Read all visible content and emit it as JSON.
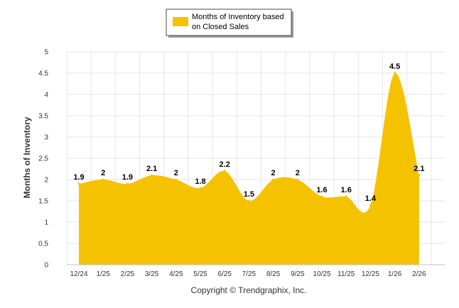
{
  "chart_data": {
    "type": "area",
    "title": "",
    "series": [
      {
        "name": "Months of Inventory based on Closed Sales",
        "color": "#f5c200",
        "values": [
          1.9,
          2,
          1.9,
          2.1,
          2,
          1.8,
          2.2,
          1.5,
          2,
          2,
          1.6,
          1.6,
          1.4,
          4.5,
          2.1
        ],
        "labels": [
          "1.9",
          "2",
          "1.9",
          "2.1",
          "2",
          "1.8",
          "2.2",
          "1.5",
          "2",
          "2",
          "1.6",
          "1.6",
          "1.4",
          "4.5",
          "2.1"
        ]
      }
    ],
    "categories": [
      "12/24",
      "1/25",
      "2/25",
      "3/25",
      "4/25",
      "5/25",
      "6/25",
      "7/25",
      "8/25",
      "9/25",
      "10/25",
      "11/25",
      "12/25",
      "1/26",
      "2/26"
    ],
    "xlabel": "",
    "ylabel": "Months of Inventory",
    "ylim": [
      0,
      5
    ],
    "yticks": [
      "0",
      "0.5",
      "1",
      "1.5",
      "2",
      "2.5",
      "3",
      "3.5",
      "4",
      "4.5",
      "5"
    ],
    "grid": true,
    "legend": {
      "position": "top-center",
      "line1": "Months of Inventory based",
      "line2": "on Closed Sales"
    }
  },
  "footer": {
    "copyright": "Copyright © Trendgraphix, Inc."
  }
}
